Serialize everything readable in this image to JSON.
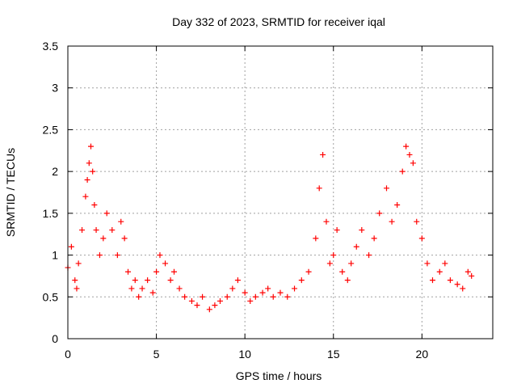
{
  "chart_data": {
    "type": "scatter",
    "title": "Day 332 of 2023, SRMTID for receiver iqal",
    "xlabel": "GPS time / hours",
    "ylabel": "SRMTID / TECUs",
    "xlim": [
      0,
      24
    ],
    "ylim": [
      0,
      3.5
    ],
    "x_ticks": [
      0,
      5,
      10,
      15,
      20
    ],
    "x_tick_labels": [
      "0",
      "5",
      "10",
      "15",
      "20"
    ],
    "y_ticks": [
      0,
      0.5,
      1,
      1.5,
      2,
      2.5,
      3,
      3.5
    ],
    "y_tick_labels": [
      "0",
      "0.5",
      "1",
      "1.5",
      "2",
      "2.5",
      "3",
      "3.5"
    ],
    "grid": true,
    "marker": "+",
    "series": [
      {
        "name": "SRMTID",
        "color": "#ff0000",
        "x": [
          0.0,
          0.2,
          0.4,
          0.5,
          0.6,
          0.8,
          1.0,
          1.1,
          1.2,
          1.3,
          1.4,
          1.5,
          1.6,
          1.8,
          2.0,
          2.2,
          2.5,
          2.8,
          3.0,
          3.2,
          3.4,
          3.6,
          3.8,
          4.0,
          4.2,
          4.5,
          4.8,
          5.0,
          5.2,
          5.5,
          5.8,
          6.0,
          6.3,
          6.6,
          7.0,
          7.3,
          7.6,
          8.0,
          8.3,
          8.6,
          9.0,
          9.3,
          9.6,
          10.0,
          10.3,
          10.6,
          11.0,
          11.3,
          11.6,
          12.0,
          12.4,
          12.8,
          13.2,
          13.6,
          14.0,
          14.2,
          14.4,
          14.6,
          14.8,
          15.0,
          15.2,
          15.5,
          15.8,
          16.0,
          16.3,
          16.6,
          17.0,
          17.3,
          17.6,
          18.0,
          18.3,
          18.6,
          18.9,
          19.1,
          19.3,
          19.5,
          19.7,
          20.0,
          20.3,
          20.6,
          21.0,
          21.3,
          21.6,
          22.0,
          22.3,
          22.6,
          22.8
        ],
        "y": [
          0.85,
          1.1,
          0.7,
          0.6,
          0.9,
          1.3,
          1.7,
          1.9,
          2.1,
          2.3,
          2.0,
          1.6,
          1.3,
          1.0,
          1.2,
          1.5,
          1.3,
          1.0,
          1.4,
          1.2,
          0.8,
          0.6,
          0.7,
          0.5,
          0.6,
          0.7,
          0.55,
          0.8,
          1.0,
          0.9,
          0.7,
          0.8,
          0.6,
          0.5,
          0.45,
          0.4,
          0.5,
          0.35,
          0.4,
          0.45,
          0.5,
          0.6,
          0.7,
          0.55,
          0.45,
          0.5,
          0.55,
          0.6,
          0.5,
          0.55,
          0.5,
          0.6,
          0.7,
          0.8,
          1.2,
          1.8,
          2.2,
          1.4,
          0.9,
          1.0,
          1.3,
          0.8,
          0.7,
          0.9,
          1.1,
          1.3,
          1.0,
          1.2,
          1.5,
          1.8,
          1.4,
          1.6,
          2.0,
          2.3,
          2.2,
          2.1,
          1.4,
          1.2,
          0.9,
          0.7,
          0.8,
          0.9,
          0.7,
          0.65,
          0.6,
          0.8,
          0.75
        ]
      }
    ]
  }
}
